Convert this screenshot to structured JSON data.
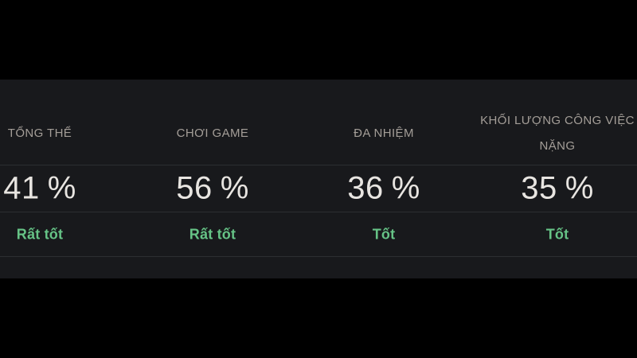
{
  "chart_data": {
    "type": "table",
    "categories": [
      "TỔNG THỂ",
      "CHƠI GAME",
      "ĐA NHIỆM",
      "KHỐI LƯỢNG CÔNG VIỆC NẶNG"
    ],
    "values": [
      41,
      56,
      36,
      35
    ],
    "ratings": [
      "Rất tốt",
      "Rất tốt",
      "Tốt",
      "Tốt"
    ],
    "unit": "%",
    "title": "",
    "layout_hints": {
      "rows": [
        "metric-labels",
        "percent-values",
        "rating-labels"
      ],
      "background": "dark",
      "grid": "horizontal-dividers-only"
    }
  },
  "table": {
    "columns": [
      {
        "label": "TỔNG THỂ",
        "value": 41,
        "unit": "%",
        "rating": "Rất tốt"
      },
      {
        "label": "CHƠI GAME",
        "value": 56,
        "unit": "%",
        "rating": "Rất tốt"
      },
      {
        "label": "ĐA NHIỆM",
        "value": 36,
        "unit": "%",
        "rating": "Tốt"
      },
      {
        "label": "KHỐI LƯỢNG CÔNG VIỆC NẶNG",
        "value": 35,
        "unit": "%",
        "rating": "Tốt"
      }
    ]
  },
  "colors": {
    "page_background": "#000000",
    "panel_background": "#18191c",
    "divider": "#2c2e31",
    "header_text": "#a49e98",
    "value_text": "#e8e5e1",
    "rating_good": "#66c386"
  }
}
